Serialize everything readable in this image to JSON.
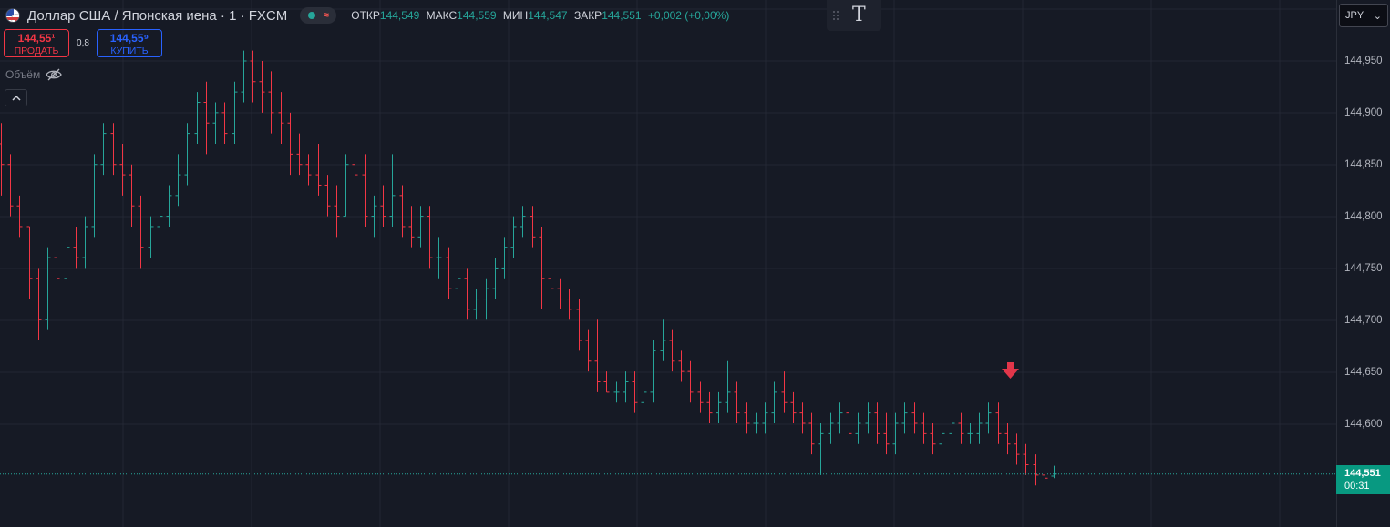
{
  "legend": {
    "title": "Доллар США / Японская иена · 1 · FXCM",
    "ohlc": [
      {
        "label": "ОТКР",
        "value": "144,549"
      },
      {
        "label": "МАКС",
        "value": "144,559"
      },
      {
        "label": "МИН",
        "value": "144,547"
      },
      {
        "label": "ЗАКР",
        "value": "144,551"
      }
    ],
    "change": "+0,002 (+0,00%)"
  },
  "trade": {
    "sell_price": "144,55¹",
    "sell_label": "ПРОДАТЬ",
    "spread": "0,8",
    "buy_price": "144,55⁹",
    "buy_label": "КУПИТЬ"
  },
  "volume_label": "Объём",
  "currency": "JPY",
  "price_axis": [
    "144,950",
    "144,900",
    "144,850",
    "144,800",
    "144,750",
    "144,700",
    "144,650",
    "144,600"
  ],
  "last_price": {
    "value": "144,551",
    "countdown": "00:31"
  },
  "colors": {
    "background": "#161a25",
    "up": "#26a69a",
    "down": "#f23645",
    "grid": "#232733",
    "signal": "#e2364a"
  },
  "icons": {
    "signal": "arrow-down-icon"
  },
  "chart_data": {
    "type": "ohlc",
    "symbol": "USDJPY",
    "timeframe": "1",
    "ylim": [
      144.53,
      144.99
    ],
    "ohlc": [
      [
        144.87,
        144.89,
        144.82,
        144.85
      ],
      [
        144.85,
        144.86,
        144.8,
        144.81
      ],
      [
        144.81,
        144.82,
        144.78,
        144.79
      ],
      [
        144.79,
        144.79,
        144.72,
        144.74
      ],
      [
        144.74,
        144.75,
        144.68,
        144.7
      ],
      [
        144.7,
        144.77,
        144.69,
        144.76
      ],
      [
        144.76,
        144.77,
        144.72,
        144.74
      ],
      [
        144.74,
        144.78,
        144.73,
        144.77
      ],
      [
        144.77,
        144.79,
        144.75,
        144.76
      ],
      [
        144.76,
        144.8,
        144.75,
        144.79
      ],
      [
        144.79,
        144.86,
        144.78,
        144.85
      ],
      [
        144.85,
        144.89,
        144.84,
        144.88
      ],
      [
        144.88,
        144.89,
        144.84,
        144.85
      ],
      [
        144.85,
        144.87,
        144.82,
        144.84
      ],
      [
        144.84,
        144.85,
        144.79,
        144.81
      ],
      [
        144.81,
        144.82,
        144.75,
        144.77
      ],
      [
        144.77,
        144.8,
        144.76,
        144.79
      ],
      [
        144.79,
        144.81,
        144.77,
        144.8
      ],
      [
        144.8,
        144.83,
        144.79,
        144.82
      ],
      [
        144.82,
        144.86,
        144.81,
        144.84
      ],
      [
        144.84,
        144.89,
        144.83,
        144.88
      ],
      [
        144.88,
        144.92,
        144.87,
        144.91
      ],
      [
        144.91,
        144.93,
        144.86,
        144.89
      ],
      [
        144.89,
        144.91,
        144.87,
        144.9
      ],
      [
        144.9,
        144.91,
        144.87,
        144.88
      ],
      [
        144.88,
        144.93,
        144.87,
        144.92
      ],
      [
        144.92,
        144.96,
        144.91,
        144.95
      ],
      [
        144.95,
        144.96,
        144.91,
        144.93
      ],
      [
        144.93,
        144.95,
        144.9,
        144.92
      ],
      [
        144.92,
        144.94,
        144.88,
        144.9
      ],
      [
        144.9,
        144.92,
        144.87,
        144.89
      ],
      [
        144.89,
        144.9,
        144.84,
        144.86
      ],
      [
        144.86,
        144.88,
        144.84,
        144.85
      ],
      [
        144.85,
        144.86,
        144.83,
        144.84
      ],
      [
        144.84,
        144.87,
        144.82,
        144.83
      ],
      [
        144.83,
        144.84,
        144.8,
        144.81
      ],
      [
        144.81,
        144.83,
        144.78,
        144.8
      ],
      [
        144.8,
        144.86,
        144.8,
        144.85
      ],
      [
        144.85,
        144.89,
        144.83,
        144.84
      ],
      [
        144.84,
        144.86,
        144.79,
        144.8
      ],
      [
        144.8,
        144.82,
        144.78,
        144.81
      ],
      [
        144.81,
        144.83,
        144.79,
        144.8
      ],
      [
        144.8,
        144.86,
        144.79,
        144.82
      ],
      [
        144.82,
        144.83,
        144.78,
        144.79
      ],
      [
        144.79,
        144.81,
        144.77,
        144.78
      ],
      [
        144.78,
        144.81,
        144.77,
        144.8
      ],
      [
        144.8,
        144.81,
        144.75,
        144.76
      ],
      [
        144.76,
        144.78,
        144.74,
        144.76
      ],
      [
        144.76,
        144.77,
        144.72,
        144.73
      ],
      [
        144.73,
        144.76,
        144.71,
        144.74
      ],
      [
        144.74,
        144.75,
        144.7,
        144.71
      ],
      [
        144.71,
        144.73,
        144.7,
        144.72
      ],
      [
        144.72,
        144.74,
        144.7,
        144.73
      ],
      [
        144.73,
        144.76,
        144.72,
        144.75
      ],
      [
        144.75,
        144.78,
        144.74,
        144.77
      ],
      [
        144.77,
        144.8,
        144.76,
        144.79
      ],
      [
        144.79,
        144.81,
        144.78,
        144.8
      ],
      [
        144.8,
        144.81,
        144.77,
        144.78
      ],
      [
        144.78,
        144.79,
        144.71,
        144.74
      ],
      [
        144.74,
        144.75,
        144.72,
        144.73
      ],
      [
        144.73,
        144.74,
        144.71,
        144.72
      ],
      [
        144.72,
        144.73,
        144.7,
        144.71
      ],
      [
        144.71,
        144.72,
        144.67,
        144.68
      ],
      [
        144.68,
        144.69,
        144.65,
        144.66
      ],
      [
        144.66,
        144.7,
        144.63,
        144.64
      ],
      [
        144.64,
        144.65,
        144.63,
        144.63
      ],
      [
        144.63,
        144.64,
        144.62,
        144.63
      ],
      [
        144.63,
        144.65,
        144.62,
        144.64
      ],
      [
        144.64,
        144.65,
        144.61,
        144.62
      ],
      [
        144.62,
        144.64,
        144.61,
        144.63
      ],
      [
        144.63,
        144.68,
        144.62,
        144.67
      ],
      [
        144.67,
        144.7,
        144.66,
        144.68
      ],
      [
        144.68,
        144.69,
        144.65,
        144.66
      ],
      [
        144.66,
        144.67,
        144.64,
        144.65
      ],
      [
        144.65,
        144.66,
        144.62,
        144.63
      ],
      [
        144.63,
        144.64,
        144.61,
        144.62
      ],
      [
        144.62,
        144.63,
        144.6,
        144.61
      ],
      [
        144.61,
        144.63,
        144.6,
        144.62
      ],
      [
        144.62,
        144.66,
        144.61,
        144.63
      ],
      [
        144.63,
        144.64,
        144.6,
        144.61
      ],
      [
        144.61,
        144.62,
        144.59,
        144.6
      ],
      [
        144.6,
        144.61,
        144.59,
        144.6
      ],
      [
        144.6,
        144.62,
        144.59,
        144.61
      ],
      [
        144.61,
        144.64,
        144.6,
        144.63
      ],
      [
        144.63,
        144.65,
        144.61,
        144.62
      ],
      [
        144.62,
        144.63,
        144.6,
        144.61
      ],
      [
        144.61,
        144.62,
        144.59,
        144.6
      ],
      [
        144.6,
        144.61,
        144.57,
        144.58
      ],
      [
        144.58,
        144.6,
        144.55,
        144.59
      ],
      [
        144.59,
        144.61,
        144.58,
        144.6
      ],
      [
        144.6,
        144.62,
        144.59,
        144.61
      ],
      [
        144.61,
        144.62,
        144.58,
        144.59
      ],
      [
        144.59,
        144.61,
        144.58,
        144.6
      ],
      [
        144.6,
        144.62,
        144.59,
        144.61
      ],
      [
        144.61,
        144.62,
        144.58,
        144.59
      ],
      [
        144.59,
        144.61,
        144.57,
        144.58
      ],
      [
        144.58,
        144.61,
        144.57,
        144.6
      ],
      [
        144.6,
        144.62,
        144.59,
        144.61
      ],
      [
        144.61,
        144.62,
        144.59,
        144.6
      ],
      [
        144.6,
        144.61,
        144.58,
        144.59
      ],
      [
        144.59,
        144.6,
        144.57,
        144.58
      ],
      [
        144.58,
        144.6,
        144.57,
        144.59
      ],
      [
        144.59,
        144.61,
        144.58,
        144.6
      ],
      [
        144.6,
        144.61,
        144.58,
        144.59
      ],
      [
        144.59,
        144.6,
        144.58,
        144.59
      ],
      [
        144.59,
        144.61,
        144.58,
        144.6
      ],
      [
        144.6,
        144.62,
        144.59,
        144.61
      ],
      [
        144.61,
        144.62,
        144.58,
        144.59
      ],
      [
        144.59,
        144.6,
        144.57,
        144.58
      ],
      [
        144.58,
        144.59,
        144.56,
        144.57
      ],
      [
        144.57,
        144.58,
        144.55,
        144.56
      ],
      [
        144.56,
        144.57,
        144.54,
        144.55
      ],
      [
        144.55,
        144.56,
        144.545,
        144.547
      ],
      [
        144.549,
        144.559,
        144.547,
        144.551
      ]
    ]
  }
}
